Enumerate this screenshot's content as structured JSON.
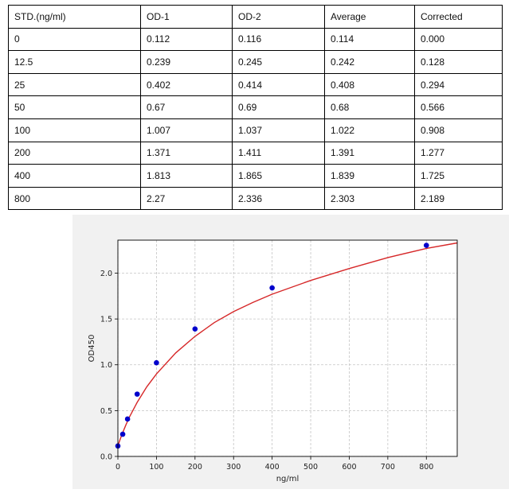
{
  "table": {
    "headers": [
      "STD.(ng/ml)",
      "OD-1",
      "OD-2",
      "Average",
      "Corrected"
    ],
    "rows": [
      [
        "0",
        "0.112",
        "0.116",
        "0.114",
        "0.000"
      ],
      [
        "12.5",
        "0.239",
        "0.245",
        "0.242",
        "0.128"
      ],
      [
        "25",
        "0.402",
        "0.414",
        "0.408",
        "0.294"
      ],
      [
        "50",
        "0.67",
        "0.69",
        "0.68",
        "0.566"
      ],
      [
        "100",
        "1.007",
        "1.037",
        "1.022",
        "0.908"
      ],
      [
        "200",
        "1.371",
        "1.411",
        "1.391",
        "1.277"
      ],
      [
        "400",
        "1.813",
        "1.865",
        "1.839",
        "1.725"
      ],
      [
        "800",
        "2.27",
        "2.336",
        "2.303",
        "2.189"
      ]
    ]
  },
  "chart_data": {
    "type": "scatter",
    "title": "",
    "xlabel": "ng/ml",
    "ylabel": "OD450",
    "xlim": [
      0,
      880
    ],
    "ylim": [
      0,
      2.36
    ],
    "xticks": [
      0,
      100,
      200,
      300,
      400,
      500,
      600,
      700,
      800
    ],
    "yticks": [
      0.0,
      0.5,
      1.0,
      1.5,
      2.0
    ],
    "ytick_labels": [
      "0.0",
      "0.5",
      "1.0",
      "1.5",
      "2.0"
    ],
    "grid": true,
    "points": {
      "x": [
        0,
        12.5,
        25,
        50,
        100,
        200,
        400,
        800
      ],
      "y": [
        0.114,
        0.242,
        0.408,
        0.68,
        1.022,
        1.391,
        1.839,
        2.303
      ],
      "color": "#0000cc"
    },
    "fit_curve": {
      "x": [
        0,
        5,
        10,
        20,
        30,
        50,
        75,
        100,
        150,
        200,
        250,
        300,
        350,
        400,
        500,
        600,
        700,
        800,
        880
      ],
      "y": [
        0.114,
        0.176,
        0.233,
        0.337,
        0.43,
        0.59,
        0.76,
        0.9,
        1.13,
        1.31,
        1.46,
        1.58,
        1.68,
        1.77,
        1.92,
        2.05,
        2.17,
        2.27,
        2.33
      ],
      "color": "#d62728"
    }
  }
}
